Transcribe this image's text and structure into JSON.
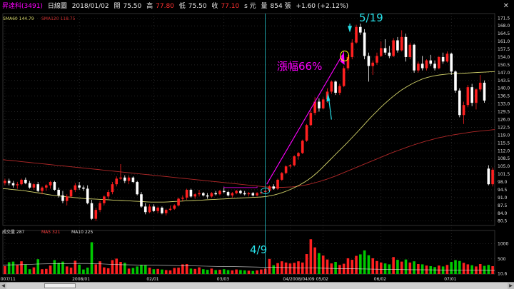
{
  "header": {
    "stock_name": "昇達科(3491)",
    "chart_mode": "日線圖",
    "date": "2018/01/02",
    "open_label": "開",
    "open": "75.50",
    "high_label": "高",
    "high": "77.80",
    "low_label": "低",
    "low": "75.50",
    "close_label": "收",
    "close": "77.10",
    "unit": "s 元",
    "volume_label": "量",
    "volume": "854 張",
    "change": "+1.60 (+2.12%)",
    "close_icon": "close-icon"
  },
  "colors": {
    "up": "#ff2020",
    "down": "#ffffff",
    "ma60": "#d4d46a",
    "ma120": "#b02828",
    "annotation": "#ff00ff",
    "cyan": "#28e0e8",
    "yellow_circle": "#ffff00",
    "vol_up": "#ff2020",
    "vol_down": "#00c800"
  },
  "price_legend": {
    "sma60": "SMA60 144.79",
    "sma120": "SMA120 118.75"
  },
  "volume_legend": {
    "label": "成交量 287",
    "ma5": "MA5 321",
    "ma10": "MA10 225"
  },
  "annotations": {
    "rise_text": "漲幅66%",
    "start_date": "4/9",
    "peak_date": "5/19",
    "x_marker": "04/2008/04/09"
  },
  "chart_data": {
    "type": "candlestick",
    "price_axis": {
      "ticks": [
        "171.5",
        "168.0",
        "164.5",
        "161.0",
        "157.5",
        "154.0",
        "150.5",
        "147.0",
        "143.5",
        "140.0",
        "136.5",
        "133.0",
        "129.5",
        "126.0",
        "122.5",
        "119.0",
        "115.5",
        "112.0",
        "108.5",
        "105.0",
        "101.5",
        "98.0",
        "94.5",
        "91.0",
        "87.5",
        "84.0",
        "80.5"
      ],
      "range": [
        78.5,
        173.5
      ]
    },
    "volume_axis": {
      "ticks": [
        "1000",
        "500",
        "10.6"
      ],
      "range": [
        0,
        1250
      ]
    },
    "x_axis": {
      "ticks": [
        "2007/11",
        "2008/01",
        "02/01",
        "03/03",
        "04/2008/04/09",
        "05/02",
        "06/02",
        "07/01"
      ]
    },
    "candles": [
      [
        97.5,
        99.5,
        96.5,
        98.5,
        260
      ],
      [
        98.5,
        99.5,
        96.5,
        97.5,
        390
      ],
      [
        97.5,
        98.5,
        95.5,
        96.5,
        410
      ],
      [
        96.5,
        98.0,
        95.0,
        97.0,
        300
      ],
      [
        97.0,
        99.5,
        96.5,
        99.0,
        420
      ],
      [
        99.0,
        100.0,
        97.0,
        97.5,
        320
      ],
      [
        97.5,
        98.5,
        95.0,
        95.5,
        160
      ],
      [
        95.5,
        97.5,
        94.5,
        97.0,
        220
      ],
      [
        97.0,
        98.0,
        93.5,
        94.0,
        490
      ],
      [
        94.0,
        96.0,
        92.5,
        95.5,
        160
      ],
      [
        95.5,
        97.0,
        94.0,
        96.5,
        170
      ],
      [
        96.5,
        98.5,
        95.0,
        98.0,
        280
      ],
      [
        98.0,
        98.5,
        94.0,
        94.5,
        460
      ],
      [
        94.5,
        95.5,
        91.0,
        92.0,
        370
      ],
      [
        92.0,
        94.0,
        88.5,
        89.5,
        410
      ],
      [
        89.5,
        92.5,
        87.5,
        91.5,
        250
      ],
      [
        91.5,
        95.0,
        91.0,
        94.5,
        210
      ],
      [
        94.5,
        97.5,
        93.5,
        96.5,
        440
      ],
      [
        96.5,
        98.0,
        94.5,
        95.5,
        310
      ],
      [
        95.5,
        96.5,
        94.0,
        95.0,
        150
      ],
      [
        95.0,
        96.5,
        88.0,
        88.5,
        210
      ],
      [
        88.5,
        90.0,
        81.0,
        81.5,
        1050
      ],
      [
        81.5,
        86.5,
        80.5,
        85.5,
        320
      ],
      [
        85.5,
        89.5,
        84.5,
        88.5,
        420
      ],
      [
        88.5,
        92.0,
        87.5,
        91.5,
        220
      ],
      [
        91.5,
        94.5,
        90.5,
        93.5,
        190
      ],
      [
        93.5,
        98.0,
        92.5,
        97.0,
        460
      ],
      [
        97.0,
        100.5,
        96.0,
        99.5,
        510
      ],
      [
        99.5,
        106.0,
        99.0,
        100.0,
        400
      ],
      [
        100.0,
        101.0,
        97.5,
        98.5,
        370
      ],
      [
        98.5,
        101.0,
        97.0,
        100.0,
        180
      ],
      [
        100.0,
        100.5,
        97.5,
        98.0,
        200
      ],
      [
        98.0,
        98.5,
        92.0,
        92.5,
        250
      ],
      [
        92.5,
        93.5,
        86.5,
        87.0,
        300
      ],
      [
        87.0,
        88.5,
        83.5,
        84.5,
        290
      ],
      [
        84.5,
        88.0,
        84.0,
        87.0,
        210
      ],
      [
        87.0,
        88.0,
        84.5,
        85.0,
        160
      ],
      [
        85.0,
        87.0,
        84.0,
        86.5,
        170
      ],
      [
        86.5,
        87.0,
        83.5,
        84.0,
        150
      ],
      [
        84.0,
        86.0,
        83.0,
        85.5,
        130
      ],
      [
        85.5,
        87.5,
        85.0,
        86.0,
        120
      ],
      [
        86.0,
        88.0,
        85.5,
        87.5,
        200
      ],
      [
        87.5,
        91.0,
        87.0,
        90.5,
        210
      ],
      [
        90.5,
        92.0,
        89.5,
        91.0,
        320
      ],
      [
        91.0,
        95.0,
        90.0,
        94.5,
        330
      ],
      [
        94.5,
        95.0,
        91.0,
        91.5,
        180
      ],
      [
        91.5,
        93.0,
        90.5,
        92.5,
        170
      ],
      [
        92.5,
        94.5,
        91.5,
        93.0,
        220
      ],
      [
        93.0,
        93.5,
        91.5,
        92.0,
        160
      ],
      [
        92.0,
        93.0,
        90.5,
        91.5,
        140
      ],
      [
        91.5,
        93.5,
        91.0,
        93.0,
        180
      ],
      [
        93.0,
        94.0,
        92.0,
        92.5,
        130
      ],
      [
        92.5,
        94.5,
        92.0,
        94.0,
        140
      ],
      [
        94.0,
        95.5,
        93.0,
        93.5,
        160
      ],
      [
        93.5,
        94.0,
        91.5,
        92.0,
        130
      ],
      [
        92.0,
        93.5,
        91.0,
        93.0,
        120
      ],
      [
        93.0,
        94.5,
        92.5,
        94.0,
        150
      ],
      [
        94.0,
        94.5,
        92.5,
        93.0,
        130
      ],
      [
        93.0,
        94.0,
        92.0,
        92.5,
        120
      ],
      [
        92.5,
        93.5,
        91.5,
        93.0,
        110
      ],
      [
        93.0,
        93.5,
        91.5,
        92.0,
        100
      ],
      [
        92.0,
        93.5,
        91.5,
        93.0,
        120
      ],
      [
        93.0,
        94.0,
        92.5,
        93.5,
        150
      ],
      [
        93.5,
        94.5,
        93.0,
        94.0,
        180
      ],
      [
        94.0,
        96.5,
        93.5,
        96.0,
        500
      ],
      [
        96.0,
        97.0,
        94.5,
        95.0,
        290
      ],
      [
        95.0,
        99.5,
        94.5,
        99.0,
        360
      ],
      [
        99.0,
        102.5,
        98.5,
        102.0,
        420
      ],
      [
        102.0,
        105.5,
        101.5,
        105.0,
        380
      ],
      [
        105.0,
        106.0,
        104.0,
        105.5,
        350
      ],
      [
        105.5,
        110.0,
        105.0,
        109.5,
        370
      ],
      [
        109.5,
        111.5,
        108.0,
        111.0,
        420
      ],
      [
        111.0,
        117.0,
        110.5,
        116.5,
        380
      ],
      [
        116.5,
        124.0,
        116.0,
        123.5,
        660
      ],
      [
        123.5,
        130.0,
        123.0,
        129.0,
        1150
      ],
      [
        129.0,
        136.0,
        128.0,
        134.0,
        880
      ],
      [
        134.0,
        135.5,
        129.5,
        131.0,
        690
      ],
      [
        131.0,
        136.0,
        130.5,
        135.0,
        610
      ],
      [
        135.0,
        140.0,
        133.5,
        138.5,
        480
      ],
      [
        138.5,
        143.5,
        137.5,
        143.0,
        350
      ],
      [
        143.0,
        143.5,
        137.0,
        138.0,
        400
      ],
      [
        138.0,
        142.0,
        137.0,
        141.0,
        300
      ],
      [
        141.0,
        150.0,
        140.5,
        149.0,
        340
      ],
      [
        149.0,
        155.0,
        148.0,
        154.0,
        520
      ],
      [
        154.0,
        162.0,
        153.0,
        160.5,
        470
      ],
      [
        160.5,
        168.5,
        160.0,
        167.5,
        600
      ],
      [
        167.5,
        169.0,
        164.0,
        165.0,
        650
      ],
      [
        165.0,
        166.5,
        153.0,
        154.5,
        780
      ],
      [
        154.5,
        156.0,
        143.0,
        150.0,
        620
      ],
      [
        150.0,
        152.5,
        146.0,
        151.5,
        520
      ],
      [
        151.5,
        156.0,
        150.5,
        154.5,
        430
      ],
      [
        154.5,
        161.0,
        154.0,
        158.0,
        380
      ],
      [
        158.0,
        162.0,
        155.0,
        156.0,
        350
      ],
      [
        156.0,
        159.0,
        153.5,
        154.5,
        320
      ],
      [
        154.5,
        162.5,
        154.0,
        161.5,
        560
      ],
      [
        161.5,
        163.0,
        156.0,
        157.0,
        470
      ],
      [
        157.0,
        166.0,
        156.5,
        163.0,
        410
      ],
      [
        163.0,
        164.5,
        152.0,
        154.0,
        480
      ],
      [
        154.0,
        160.5,
        153.0,
        159.5,
        380
      ],
      [
        159.5,
        160.0,
        147.0,
        148.0,
        420
      ],
      [
        148.0,
        152.0,
        147.0,
        151.0,
        330
      ],
      [
        151.0,
        154.5,
        148.0,
        149.0,
        320
      ],
      [
        149.0,
        153.0,
        148.0,
        152.5,
        280
      ],
      [
        152.5,
        155.0,
        150.0,
        151.0,
        260
      ],
      [
        151.0,
        152.5,
        148.0,
        149.0,
        230
      ],
      [
        149.0,
        154.5,
        148.5,
        154.0,
        280
      ],
      [
        154.0,
        156.0,
        151.0,
        152.0,
        250
      ],
      [
        152.0,
        156.5,
        151.5,
        155.5,
        300
      ],
      [
        155.5,
        156.0,
        146.0,
        147.5,
        400
      ],
      [
        147.5,
        148.0,
        138.0,
        139.0,
        460
      ],
      [
        139.0,
        140.0,
        127.0,
        128.0,
        430
      ],
      [
        128.0,
        134.0,
        124.0,
        132.5,
        370
      ],
      [
        132.5,
        141.5,
        131.5,
        140.5,
        320
      ],
      [
        140.5,
        142.0,
        132.0,
        133.5,
        290
      ],
      [
        133.5,
        140.0,
        130.5,
        139.5,
        250
      ],
      [
        139.5,
        146.0,
        138.5,
        142.5,
        330
      ],
      [
        142.5,
        143.5,
        133.5,
        134.5,
        270
      ],
      [
        104.0,
        105.5,
        96.5,
        97.0,
        300
      ],
      [
        97.0,
        104.5,
        96.0,
        103.5,
        260
      ]
    ],
    "ma60": [
      95,
      94.9,
      94.7,
      94.5,
      94.3,
      94.1,
      93.8,
      93.5,
      93.2,
      92.9,
      92.6,
      92.3,
      92,
      91.8,
      91.6,
      91.4,
      91.2,
      91,
      90.8,
      90.6,
      90.5,
      90.4,
      90.3,
      90.2,
      90.1,
      90,
      89.9,
      89.8,
      89.7,
      89.6,
      89.5,
      89.4,
      89.3,
      89.2,
      89.1,
      89,
      89,
      89,
      89,
      89.1,
      89.2,
      89.3,
      89.4,
      89.5,
      89.6,
      89.7,
      89.8,
      89.9,
      90,
      90.1,
      90.2,
      90.3,
      90.4,
      90.5,
      90.6,
      90.7,
      90.8,
      90.9,
      91,
      91.1,
      91.2,
      91.3,
      91.5,
      91.8,
      92.2,
      92.7,
      93.3,
      94,
      94.8,
      95.7,
      96.7,
      97.8,
      99,
      100.4,
      102,
      103.8,
      105.7,
      107.6,
      109.5,
      111.4,
      113.3,
      115.2,
      117.2,
      119.2,
      121.2,
      123.3,
      125.4,
      127.4,
      129.3,
      131.2,
      133,
      134.7,
      136.3,
      137.8,
      139.2,
      140.4,
      141.5,
      142.5,
      143.4,
      144.2,
      144.8,
      145.3,
      145.7,
      146,
      146.2,
      146.4,
      146.5,
      146.6,
      146.7,
      146.8,
      146.9,
      147,
      147.1,
      147.2,
      147.3,
      147.4,
      147.5
    ],
    "ma120": [
      108,
      107.8,
      107.6,
      107.4,
      107.2,
      107,
      106.8,
      106.6,
      106.4,
      106.2,
      106,
      105.8,
      105.6,
      105.4,
      105.2,
      105,
      104.8,
      104.6,
      104.4,
      104.2,
      104,
      103.8,
      103.6,
      103.4,
      103.2,
      103,
      102.8,
      102.6,
      102.4,
      102.2,
      102,
      101.8,
      101.6,
      101.4,
      101.2,
      101,
      100.8,
      100.6,
      100.4,
      100.2,
      100,
      99.8,
      99.6,
      99.4,
      99.2,
      99,
      98.8,
      98.6,
      98.4,
      98.2,
      98,
      97.8,
      97.6,
      97.4,
      97.2,
      97,
      96.8,
      96.6,
      96.4,
      96.2,
      96,
      95.8,
      95.7,
      95.6,
      95.6,
      95.6,
      95.7,
      95.8,
      96,
      96.3,
      96.6,
      97,
      97.5,
      98,
      98.6,
      99.2,
      99.9,
      100.6,
      101.4,
      102.2,
      103,
      103.8,
      104.6,
      105.4,
      106.2,
      107,
      107.8,
      108.6,
      109.4,
      110.2,
      111,
      111.7,
      112.4,
      113.1,
      113.8,
      114.5,
      115.1,
      115.7,
      116.3,
      116.8,
      117.3,
      117.8,
      118.2,
      118.6,
      119,
      119.3,
      119.6,
      119.9,
      120.2,
      120.5,
      120.7,
      120.9,
      121.1,
      121.3,
      121.5
    ],
    "vol_ma": [
      300,
      310,
      330,
      340,
      350,
      350,
      330,
      310,
      300,
      290,
      280,
      270,
      260,
      250,
      240,
      230,
      220,
      210,
      200,
      190,
      180,
      170,
      160,
      150,
      145,
      140,
      135,
      130,
      125,
      120
    ]
  }
}
